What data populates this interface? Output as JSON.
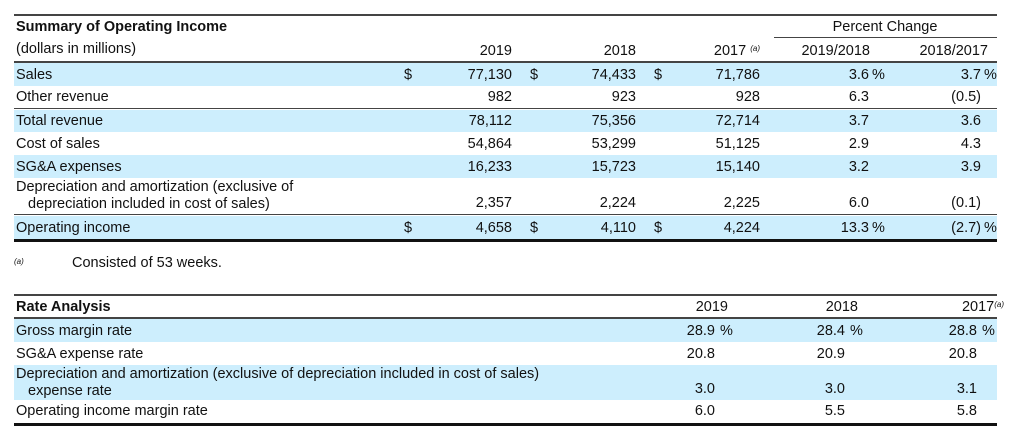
{
  "summary": {
    "title": "Summary of Operating Income",
    "subtitle": "(dollars in millions)",
    "percent_change_label": "Percent Change",
    "col_headers": [
      "2019",
      "2018",
      "2017",
      "2019/2018",
      "2018/2017"
    ],
    "footnote_marker": "(a)",
    "rows": [
      {
        "label": "Sales",
        "dollar": "$",
        "values": [
          "77,130",
          "74,433",
          "71,786"
        ],
        "pct": [
          {
            "v": "3.6",
            "u": "%"
          },
          {
            "v": "3.7",
            "u": "%"
          }
        ],
        "shaded": true
      },
      {
        "label": "Other revenue",
        "dollar": "",
        "values": [
          "982",
          "923",
          "928"
        ],
        "pct": [
          {
            "v": "6.3",
            "u": ""
          },
          {
            "v": "(0.5)",
            "u": ""
          }
        ],
        "shaded": false
      },
      {
        "label": "Total revenue",
        "dollar": "",
        "values": [
          "78,112",
          "75,356",
          "72,714"
        ],
        "pct": [
          {
            "v": "3.7",
            "u": ""
          },
          {
            "v": "3.6",
            "u": ""
          }
        ],
        "shaded": true
      },
      {
        "label": "Cost of sales",
        "dollar": "",
        "values": [
          "54,864",
          "53,299",
          "51,125"
        ],
        "pct": [
          {
            "v": "2.9",
            "u": ""
          },
          {
            "v": "4.3",
            "u": ""
          }
        ],
        "shaded": false
      },
      {
        "label": "SG&A expenses",
        "dollar": "",
        "values": [
          "16,233",
          "15,723",
          "15,140"
        ],
        "pct": [
          {
            "v": "3.2",
            "u": ""
          },
          {
            "v": "3.9",
            "u": ""
          }
        ],
        "shaded": true
      },
      {
        "label": "Depreciation and amortization (exclusive of",
        "label2": "depreciation included in cost of sales)",
        "dollar": "",
        "values": [
          "2,357",
          "2,224",
          "2,225"
        ],
        "pct": [
          {
            "v": "6.0",
            "u": ""
          },
          {
            "v": "(0.1)",
            "u": ""
          }
        ],
        "shaded": false
      },
      {
        "label": "Operating income",
        "dollar": "$",
        "values": [
          "4,658",
          "4,110",
          "4,224"
        ],
        "pct": [
          {
            "v": "13.3",
            "u": "%"
          },
          {
            "v": "(2.7)",
            "u": "%"
          }
        ],
        "shaded": true
      }
    ]
  },
  "footnote": {
    "marker": "(a)",
    "text": "Consisted of 53 weeks."
  },
  "rates": {
    "title": "Rate Analysis",
    "col_headers": [
      "2019",
      "2018",
      "2017"
    ],
    "footnote_marker": "(a)",
    "rows": [
      {
        "label": "Gross margin rate",
        "values": [
          {
            "v": "28.9",
            "u": "%"
          },
          {
            "v": "28.4",
            "u": "%"
          },
          {
            "v": "28.8",
            "u": "%"
          }
        ],
        "shaded": true
      },
      {
        "label": "SG&A expense rate",
        "values": [
          {
            "v": "20.8",
            "u": ""
          },
          {
            "v": "20.9",
            "u": ""
          },
          {
            "v": "20.8",
            "u": ""
          }
        ],
        "shaded": false
      },
      {
        "label": "Depreciation and amortization (exclusive of depreciation included in cost of sales)",
        "label2": "expense rate",
        "values": [
          {
            "v": "3.0",
            "u": ""
          },
          {
            "v": "3.0",
            "u": ""
          },
          {
            "v": "3.1",
            "u": ""
          }
        ],
        "shaded": true
      },
      {
        "label": "Operating income margin rate",
        "values": [
          {
            "v": "6.0",
            "u": ""
          },
          {
            "v": "5.5",
            "u": ""
          },
          {
            "v": "5.8",
            "u": ""
          }
        ],
        "shaded": false
      }
    ]
  }
}
